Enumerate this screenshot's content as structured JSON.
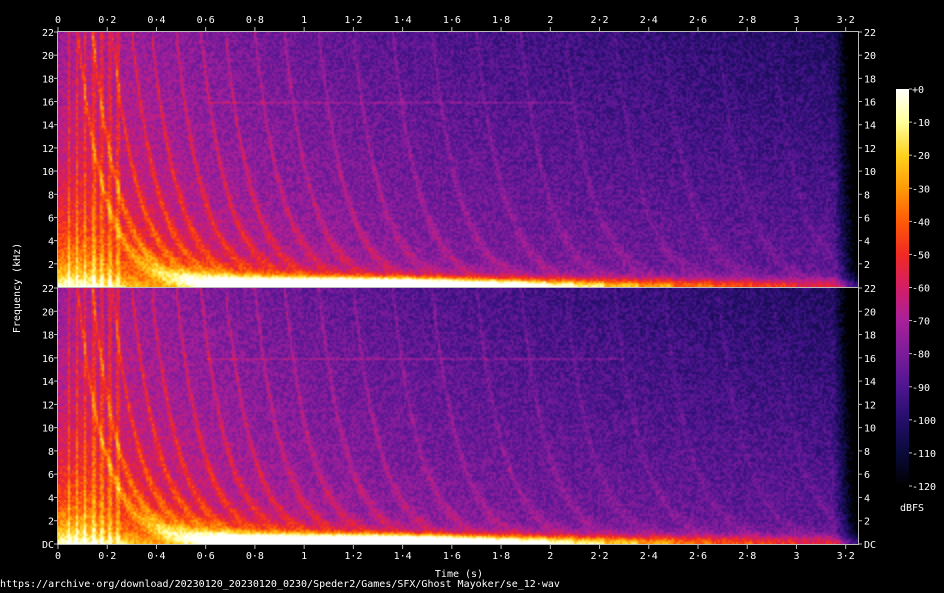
{
  "chart_data": {
    "type": "heatmap",
    "title": "",
    "xlabel": "Time (s)",
    "ylabel": "Frequency (kHz)",
    "xlim": [
      0,
      3.25
    ],
    "ylim": [
      0,
      22
    ],
    "x_ticks": [
      "0",
      "0·2",
      "0·4",
      "0·6",
      "0·8",
      "1",
      "1·2",
      "1·4",
      "1·6",
      "1·8",
      "2",
      "2·2",
      "2·4",
      "2·6",
      "2·8",
      "3",
      "3·2"
    ],
    "x_tick_values": [
      0,
      0.2,
      0.4,
      0.6,
      0.8,
      1.0,
      1.2,
      1.4,
      1.6,
      1.8,
      2.0,
      2.2,
      2.4,
      2.6,
      2.8,
      3.0,
      3.2
    ],
    "y_ticks_top": [
      "22",
      "20",
      "18",
      "16",
      "14",
      "12",
      "10",
      "8",
      "6",
      "4",
      "2"
    ],
    "y_ticks_bottom": [
      "22",
      "20",
      "18",
      "16",
      "14",
      "12",
      "10",
      "8",
      "6",
      "4",
      "2",
      "DC"
    ],
    "y_tick_values_top": [
      22,
      20,
      18,
      16,
      14,
      12,
      10,
      8,
      6,
      4,
      2
    ],
    "y_tick_values_bottom": [
      22,
      20,
      18,
      16,
      14,
      12,
      10,
      8,
      6,
      4,
      2,
      0
    ],
    "channels": 2,
    "colorbar": {
      "label": "dBFS",
      "ticks": [
        "+0",
        "-10",
        "-20",
        "-30",
        "-40",
        "-50",
        "-60",
        "-70",
        "-80",
        "-90",
        "-100",
        "-110",
        "-120"
      ],
      "tick_values": [
        0,
        -10,
        -20,
        -30,
        -40,
        -50,
        -60,
        -70,
        -80,
        -90,
        -100,
        -110,
        -120
      ],
      "range": [
        -120,
        0
      ],
      "colors": [
        "#000000",
        "#0a0a3a",
        "#240e6a",
        "#4e1590",
        "#7b1c9a",
        "#a8209a",
        "#d41e66",
        "#f02a22",
        "#ff5a08",
        "#ff9a08",
        "#ffd21e",
        "#ffff9c",
        "#ffffff"
      ]
    },
    "grid": false,
    "source": "https://archive·org/download/20230120_20230120_0230/Speder2/Games/SFX/Ghost Mayoker/se_12·wav"
  }
}
